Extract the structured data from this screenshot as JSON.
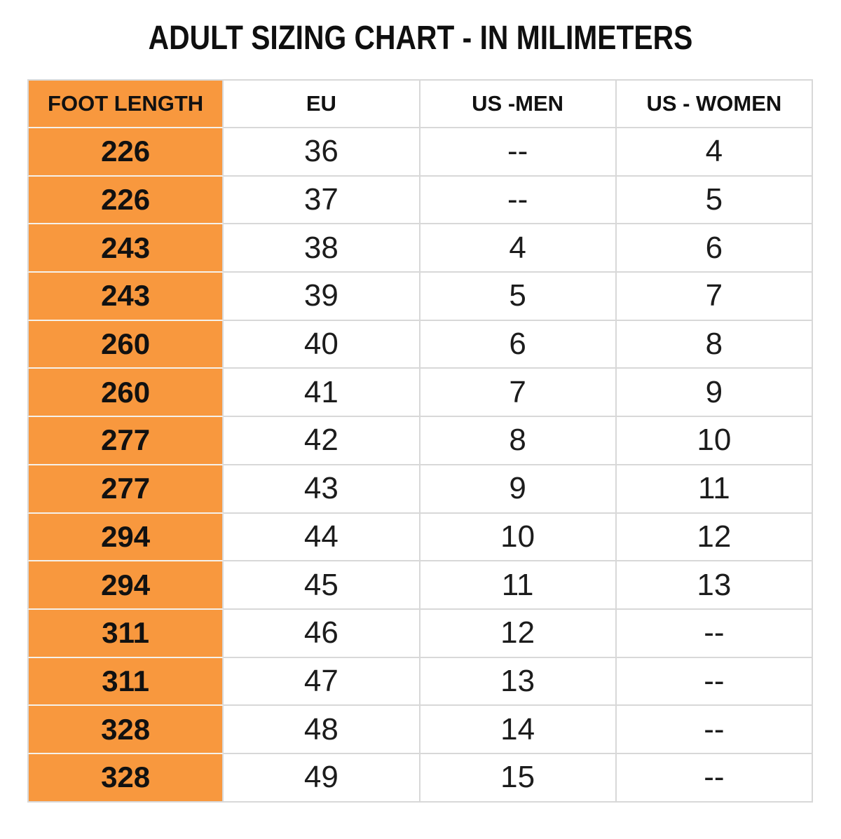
{
  "title": "ADULT SIZING CHART - IN MILIMETERS",
  "colors": {
    "accent_orange": "#F8983E",
    "grid_line": "#D8D8D8",
    "text": "#1C1C1C"
  },
  "chart_data": {
    "type": "table",
    "title": "ADULT SIZING CHART - IN MILIMETERS",
    "columns": [
      "FOOT LENGTH",
      "EU",
      "US -MEN",
      "US - WOMEN"
    ],
    "rows": [
      [
        "226",
        "36",
        "--",
        "4"
      ],
      [
        "226",
        "37",
        "--",
        "5"
      ],
      [
        "243",
        "38",
        "4",
        "6"
      ],
      [
        "243",
        "39",
        "5",
        "7"
      ],
      [
        "260",
        "40",
        "6",
        "8"
      ],
      [
        "260",
        "41",
        "7",
        "9"
      ],
      [
        "277",
        "42",
        "8",
        "10"
      ],
      [
        "277",
        "43",
        "9",
        "11"
      ],
      [
        "294",
        "44",
        "10",
        "12"
      ],
      [
        "294",
        "45",
        "11",
        "13"
      ],
      [
        "311",
        "46",
        "12",
        "--"
      ],
      [
        "311",
        "47",
        "13",
        "--"
      ],
      [
        "328",
        "48",
        "14",
        "--"
      ],
      [
        "328",
        "49",
        "15",
        "--"
      ]
    ]
  }
}
